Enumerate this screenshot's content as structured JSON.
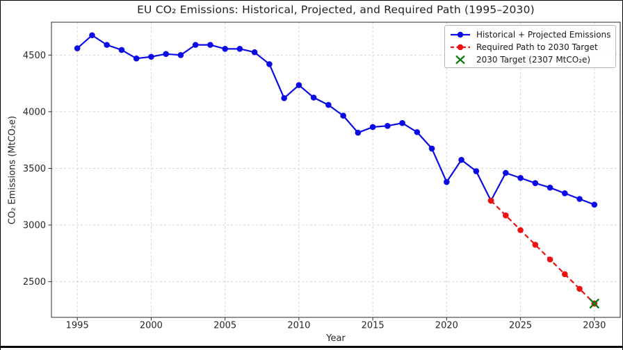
{
  "figure": {
    "title": "EU CO₂ Emissions: Historical, Projected, and Required Path (1995–2030)",
    "xlabel": "Year",
    "ylabel": "CO₂ Emissions (MtCO₂e)"
  },
  "chart_data": {
    "type": "line",
    "title": "EU CO₂ Emissions: Historical, Projected, and Required Path (1995–2030)",
    "xlabel": "Year",
    "ylabel": "CO₂ Emissions (MtCO₂e)",
    "xlim": [
      1993.25,
      2031.75
    ],
    "ylim": [
      2185,
      4790
    ],
    "x_ticks": [
      1995,
      2000,
      2005,
      2010,
      2015,
      2020,
      2025,
      2030
    ],
    "y_ticks": [
      2500,
      3000,
      3500,
      4000,
      4500
    ],
    "grid": true,
    "grid_style": "dashed",
    "grid_color": "#d4d4d4",
    "legend_position": "upper right",
    "series": [
      {
        "name": "Historical + Projected Emissions",
        "type": "line",
        "color": "#0b0be6",
        "linestyle": "solid",
        "marker": "circle",
        "x": [
          1995,
          1996,
          1997,
          1998,
          1999,
          2000,
          2001,
          2002,
          2003,
          2004,
          2005,
          2006,
          2007,
          2008,
          2009,
          2010,
          2011,
          2012,
          2013,
          2014,
          2015,
          2016,
          2017,
          2018,
          2019,
          2020,
          2021,
          2022,
          2023,
          2024,
          2025,
          2026,
          2027,
          2028,
          2029,
          2030
        ],
        "y": [
          4560,
          4675,
          4590,
          4545,
          4470,
          4485,
          4510,
          4500,
          4590,
          4590,
          4555,
          4555,
          4525,
          4420,
          4120,
          4235,
          4125,
          4060,
          3965,
          3815,
          3865,
          3875,
          3900,
          3820,
          3675,
          3380,
          3575,
          3475,
          3215,
          3460,
          3415,
          3370,
          3330,
          3280,
          3230,
          3180
        ]
      },
      {
        "name": "Required Path to 2030 Target",
        "type": "line",
        "color": "#ee1111",
        "linestyle": "dashed",
        "marker": "circle",
        "x": [
          2023,
          2024,
          2025,
          2026,
          2027,
          2028,
          2029,
          2030
        ],
        "y": [
          3215,
          3085,
          2955,
          2826,
          2696,
          2566,
          2437,
          2307
        ]
      },
      {
        "name": "2030 Target (2307 MtCO₂e)",
        "type": "scatter",
        "color": "#0e7c0e",
        "marker": "x",
        "x": [
          2030
        ],
        "y": [
          2307
        ]
      }
    ]
  }
}
